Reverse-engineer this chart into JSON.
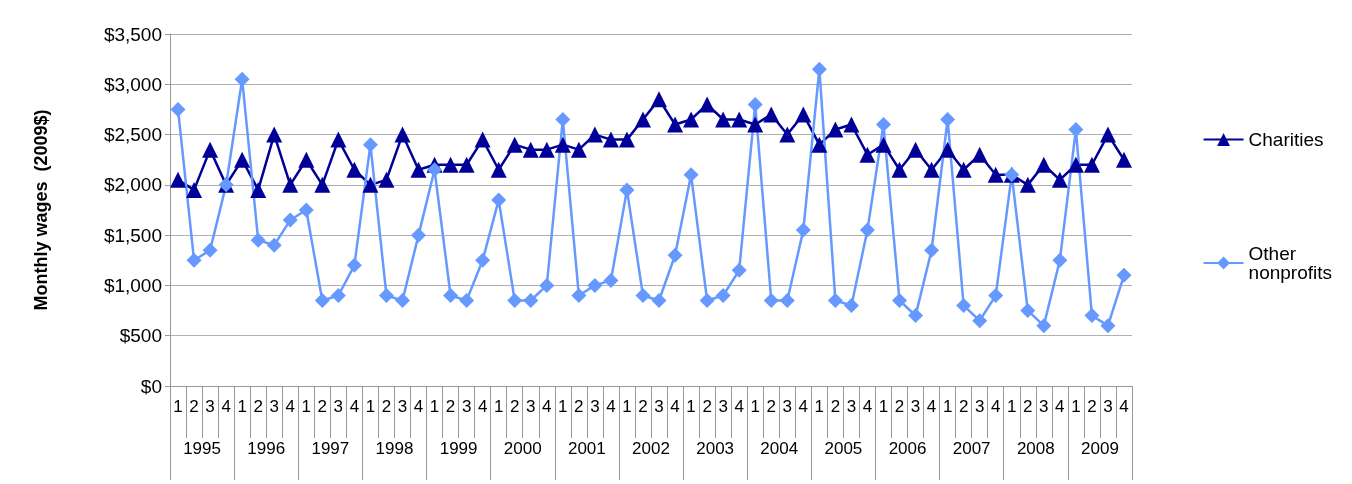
{
  "chart_data": {
    "type": "line",
    "ylabel": "Monthly wages  (2009$)",
    "categories": [
      "1",
      "2",
      "3",
      "4",
      "1",
      "2",
      "3",
      "4",
      "1",
      "2",
      "3",
      "4",
      "1",
      "2",
      "3",
      "4",
      "1",
      "2",
      "3",
      "4",
      "1",
      "2",
      "3",
      "4",
      "1",
      "2",
      "3",
      "4",
      "1",
      "2",
      "3",
      "4",
      "1",
      "2",
      "3",
      "4",
      "1",
      "2",
      "3",
      "4",
      "1",
      "2",
      "3",
      "4",
      "1",
      "2",
      "3",
      "4",
      "1",
      "2",
      "3",
      "4",
      "1",
      "2",
      "3",
      "4",
      "1",
      "2",
      "3",
      "4"
    ],
    "annotations": [
      "1995",
      "1996",
      "1997",
      "1998",
      "1999",
      "2000",
      "2001",
      "2002",
      "2003",
      "2004",
      "2005",
      "2006",
      "2007",
      "2008",
      "2009"
    ],
    "series": [
      {
        "name": "Charities",
        "color": "#000099",
        "marker": "triangle",
        "values": [
          2050,
          1950,
          2350,
          2000,
          2250,
          1950,
          2500,
          2000,
          2250,
          2000,
          2450,
          2150,
          2000,
          2050,
          2500,
          2150,
          2200,
          2200,
          2200,
          2450,
          2150,
          2400,
          2350,
          2350,
          2400,
          2350,
          2500,
          2450,
          2450,
          2650,
          2850,
          2600,
          2650,
          2800,
          2650,
          2650,
          2600,
          2700,
          2500,
          2700,
          2400,
          2550,
          2600,
          2300,
          2400,
          2150,
          2350,
          2150,
          2350,
          2150,
          2300,
          2100,
          2100,
          2000,
          2200,
          2050,
          2200,
          2200,
          2500,
          2250
        ]
      },
      {
        "name": "Other nonprofits",
        "color": "#6699ff",
        "marker": "diamond",
        "values": [
          2750,
          1250,
          1350,
          2000,
          3050,
          1450,
          1400,
          1650,
          1750,
          850,
          900,
          1200,
          2400,
          900,
          850,
          1500,
          2150,
          900,
          850,
          1250,
          1850,
          850,
          850,
          1000,
          2650,
          900,
          1000,
          1050,
          1950,
          900,
          850,
          1300,
          2100,
          850,
          900,
          1150,
          2800,
          850,
          850,
          1550,
          3150,
          850,
          800,
          1550,
          2600,
          850,
          700,
          1350,
          2650,
          800,
          650,
          900,
          2100,
          750,
          600,
          1250,
          2550,
          700,
          600,
          1100
        ]
      }
    ],
    "ylim": [
      0,
      3500
    ],
    "yticks": [
      {
        "value": 0,
        "label": "$0"
      },
      {
        "value": 500,
        "label": "$500"
      },
      {
        "value": 1000,
        "label": "$1,000"
      },
      {
        "value": 1500,
        "label": "$1,500"
      },
      {
        "value": 2000,
        "label": "$2,000"
      },
      {
        "value": 2500,
        "label": "$2,500"
      },
      {
        "value": 3000,
        "label": "$3,000"
      },
      {
        "value": 3500,
        "label": "$3,500"
      }
    ],
    "grid": "y",
    "legend": "right",
    "line_style": "solid"
  }
}
